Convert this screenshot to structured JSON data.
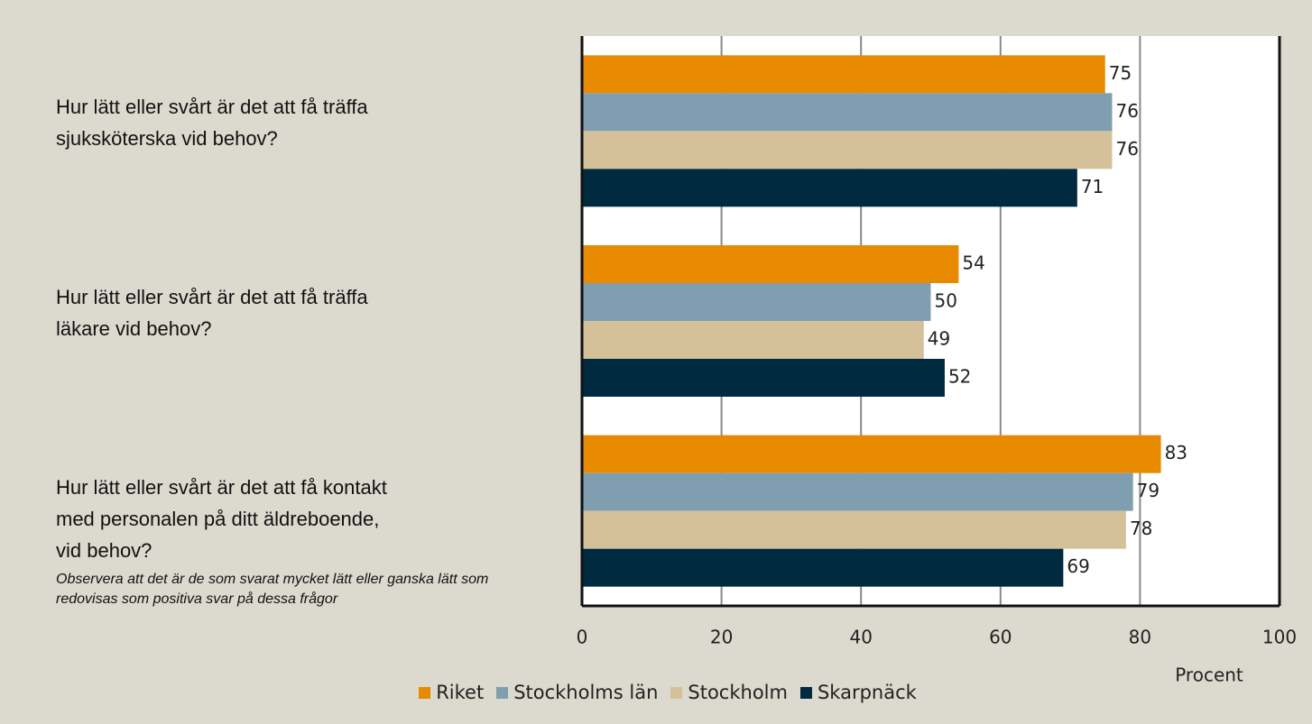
{
  "chart_data": {
    "type": "barh",
    "categories": [
      "Hur lätt eller svårt är det att få träffa\nsjuksköterska vid behov?",
      "Hur lätt eller svårt är det att få träffa\nläkare vid behov?",
      "Hur lätt eller svårt är det att få kontakt\nmed personalen på ditt äldreboende,\nvid behov?"
    ],
    "series": [
      {
        "name": "Riket",
        "color": "#e88a00",
        "values": [
          75,
          54,
          83
        ]
      },
      {
        "name": "Stockholms län",
        "color": "#7f9fb0",
        "values": [
          76,
          50,
          79
        ]
      },
      {
        "name": "Stockholm",
        "color": "#d4c19a",
        "values": [
          76,
          49,
          78
        ]
      },
      {
        "name": "Skarpnäck",
        "color": "#002a40",
        "values": [
          71,
          52,
          69
        ]
      }
    ],
    "xlabel": "Procent",
    "xlim": [
      0,
      100
    ],
    "xticks": [
      0,
      20,
      40,
      60,
      80,
      100
    ],
    "grid": true,
    "legend": "bottom",
    "annotation": "Observera att det är de som svarat mycket lätt eller ganska lätt som redovisas som positiva svar på dessa frågor"
  }
}
